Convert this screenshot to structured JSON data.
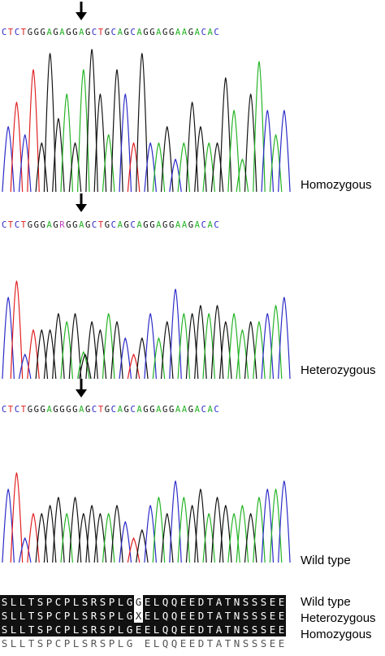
{
  "panels": [
    {
      "label": "Homozygous",
      "sequence": "CTCTGGGAGAGGAGCTGCAGCAGGAGGAAGACAC"
    },
    {
      "label": "Heterozygous",
      "sequence": "CTCTGGGAGRGGAGCTGCAGCAGGAGGAAGACAC"
    },
    {
      "label": "Wild type",
      "sequence": "CTCTGGGAGGGGAGCTGCAGCAGGAGGAAGACAC"
    }
  ],
  "alignment": {
    "rows": [
      {
        "label": "Wild type",
        "seq": "SLLTSPCPLSRSPLGGELQQEEDTATNSSSEE"
      },
      {
        "label": "Heterozygous",
        "seq": "SLLTSPCPLSRSPLGXELQQEEDTATNSSSEE"
      },
      {
        "label": "Homozygous",
        "seq": "SLLTSPCPLSRSPLGEELQQEEDTATNSSSEE"
      }
    ],
    "consensus": "SLLTSPCPLSRSPLG ELQQEEDTATNSSSEE"
  },
  "colors": {
    "A": "#22b322",
    "C": "#2a2ac8",
    "G": "#111111",
    "T": "#e02020",
    "R": "#c040c0"
  }
}
